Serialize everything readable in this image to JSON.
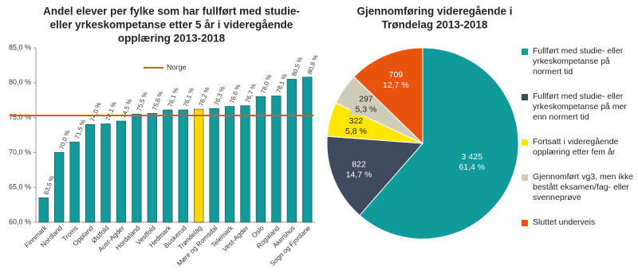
{
  "chart_data": [
    {
      "type": "bar",
      "title": [
        "Andel elever per fylke som har fullført med studie-",
        "eller yrkeskompetanse etter 5 år i videregående",
        "opplæring  2013-2018"
      ],
      "categories": [
        "Finnmark",
        "Nordland",
        "Troms",
        "Oppland",
        "Østfold",
        "Aust-Agder",
        "Hordaland",
        "Vestfold",
        "Hedmark",
        "Buskerud",
        "Trøndelag",
        "Møre og Romsdal",
        "Telemark",
        "Vest-Agder",
        "Oslo",
        "Rogaland",
        "Akershus",
        "Sogn og Fjordane"
      ],
      "values": [
        63.5,
        70.0,
        71.5,
        74.0,
        74.1,
        74.5,
        75.5,
        75.6,
        76.1,
        76.1,
        76.2,
        76.3,
        76.6,
        76.7,
        78.0,
        78.1,
        80.5,
        80.8
      ],
      "value_labels": [
        "63,5 %",
        "70,0 %",
        "71,5 %",
        "74,0 %",
        "74,1 %",
        "74,5 %",
        "75,5 %",
        "75,6 %",
        "76,1 %",
        "76,1 %",
        "76,2 %",
        "76,3 %",
        "76,6 %",
        "76,7 %",
        "78,0 %",
        "78,1 %",
        "80,5 %",
        "80,8 %"
      ],
      "colors": [
        "#139a9b",
        "#139a9b",
        "#139a9b",
        "#139a9b",
        "#139a9b",
        "#139a9b",
        "#139a9b",
        "#139a9b",
        "#139a9b",
        "#139a9b",
        "#ffd700",
        "#139a9b",
        "#139a9b",
        "#139a9b",
        "#139a9b",
        "#139a9b",
        "#139a9b",
        "#139a9b"
      ],
      "reference_lines": [
        {
          "name": "Norge",
          "value": 75.3,
          "color": "#e8530e"
        }
      ],
      "ylim": [
        60,
        85
      ],
      "yticks": [
        {
          "value": 60,
          "label": "60,0 %"
        },
        {
          "value": 65,
          "label": "65,0 %"
        },
        {
          "value": 70,
          "label": "70,0 %"
        },
        {
          "value": 75,
          "label": "75,0 %"
        },
        {
          "value": 80,
          "label": "80,0 %"
        },
        {
          "value": 85,
          "label": "85,0 %"
        }
      ]
    },
    {
      "type": "pie",
      "title": [
        "Gjennomføring videregående i",
        "Trøndelag 2013-2018"
      ],
      "categories": [
        "Fullført med studie- eller yrkeskompetanse på normert tid",
        "Fullført med studie- eller yrkeskompetanse på mer enn normert tid",
        "Fortsatt i videregående opplæring etter fem år",
        "Gjennomført vg3, men ikke bestått eksamen/fag- eller svenneprøve",
        "Sluttet underveis"
      ],
      "values": [
        3425,
        822,
        322,
        297,
        709
      ],
      "value_labels": [
        "3 425",
        "822",
        "322",
        "297",
        "709"
      ],
      "percent_labels": [
        "61,4 %",
        "14,7 %",
        "5,8 %",
        "5,3 %",
        "12,7 %"
      ],
      "colors": [
        "#109a9a",
        "#3f4a5e",
        "#ffe600",
        "#cfcdb8",
        "#e8530e"
      ]
    }
  ]
}
